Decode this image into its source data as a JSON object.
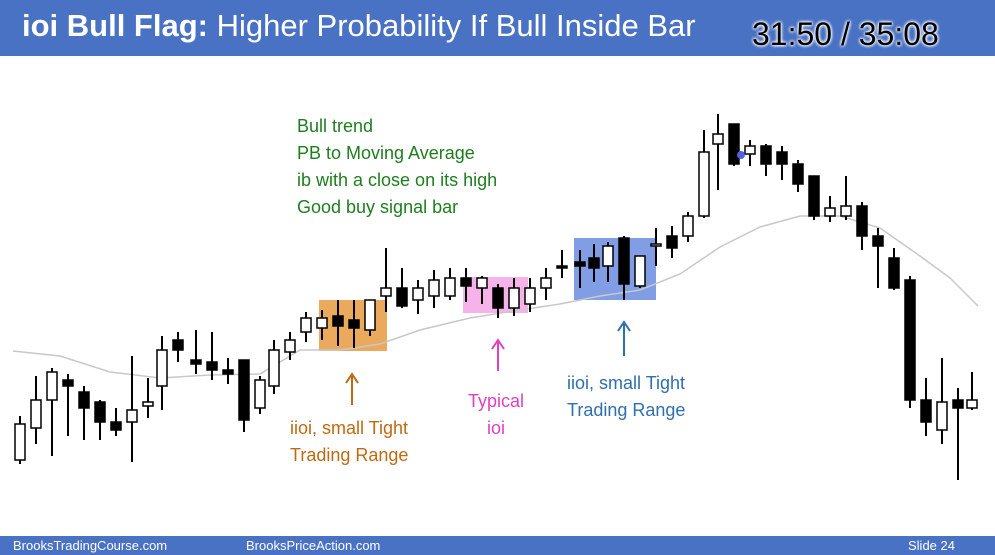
{
  "header": {
    "title_bold": "ioi Bull Flag:",
    "title_rest": " Higher Probability If Bull Inside Bar",
    "timer": "31:50 / 35:08"
  },
  "notes": {
    "main": [
      "Bull trend",
      "PB to Moving Average",
      "ib with a close on its high",
      "Good buy signal bar"
    ],
    "orange": [
      "iioi, small Tight",
      "Trading Range"
    ],
    "pink": [
      "Typical",
      "ioi"
    ],
    "blue": [
      "iioi, small Tight",
      "Trading Range"
    ]
  },
  "colors": {
    "header_bg": "#4a72c4",
    "orange_box": "#e8a04a",
    "pink_box": "#f4a6e6",
    "blue_box": "#6b8de0",
    "note_green": "#1e7e1e"
  },
  "footer": {
    "left": "BrooksTradingCourse.com",
    "middle": "BrooksPriceAction.com",
    "right": "Slide  24"
  }
}
